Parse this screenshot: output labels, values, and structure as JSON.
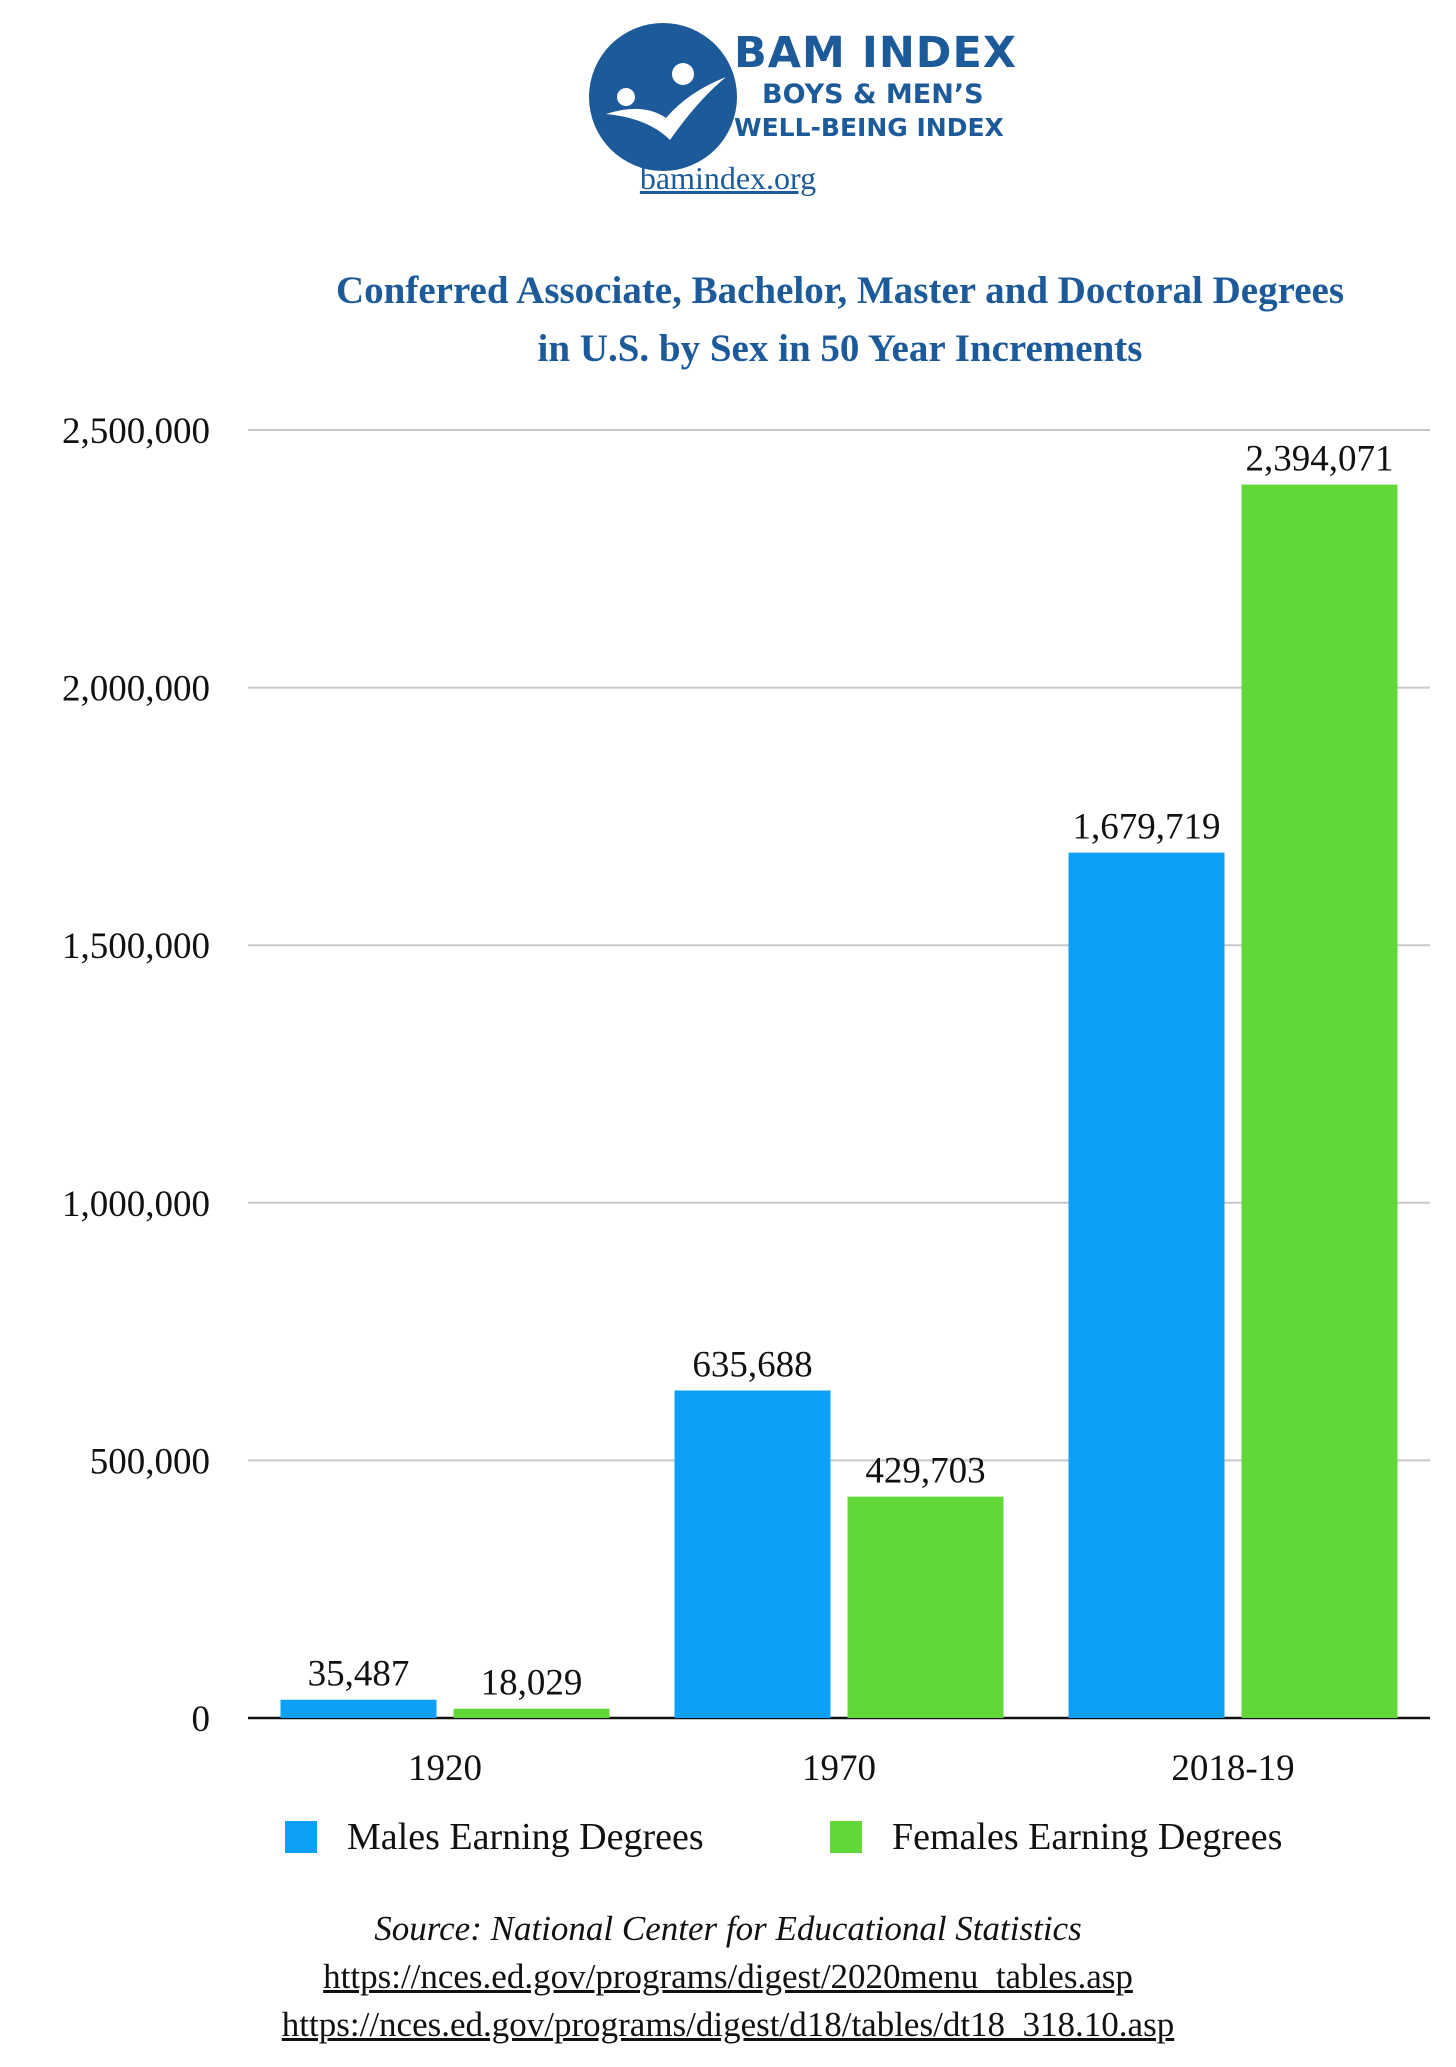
{
  "brand": {
    "name": "BAM INDEX",
    "line1": "BOYS & MEN’S",
    "line2": "WELL-BEING INDEX",
    "site": "bamindex.org",
    "logo_icon": "figures-in-circle-icon",
    "color": "#1c5a99"
  },
  "chart_data": {
    "type": "bar",
    "title_line1": "Conferred Associate, Bachelor, Master and Doctoral Degrees",
    "title_line2": "in U.S. by Sex in 50 Year Increments",
    "categories": [
      "1920",
      "1970",
      "2018-19"
    ],
    "series": [
      {
        "name": "Males Earning Degrees",
        "color": "#0ea0f8",
        "values": [
          35487,
          635688,
          1679719
        ],
        "labels": [
          "35,487",
          "635,688",
          "1,679,719"
        ]
      },
      {
        "name": "Females Earning Degrees",
        "color": "#62d838",
        "values": [
          18029,
          429703,
          2394071
        ],
        "labels": [
          "18,029",
          "429,703",
          "2,394,071"
        ]
      }
    ],
    "ylim": [
      0,
      2500000
    ],
    "yticks": [
      0,
      500000,
      1000000,
      1500000,
      2000000,
      2500000
    ],
    "ytick_labels": [
      "0",
      "500,000",
      "1,000,000",
      "1,500,000",
      "2,000,000",
      "2,500,000"
    ],
    "grid": true,
    "legend_position": "bottom"
  },
  "source": {
    "text": "Source: National Center for Educational Statistics",
    "link1": "https://nces.ed.gov/programs/digest/2020menu_tables.asp",
    "link2": "https://nces.ed.gov/programs/digest/d18/tables/dt18_318.10.asp"
  }
}
